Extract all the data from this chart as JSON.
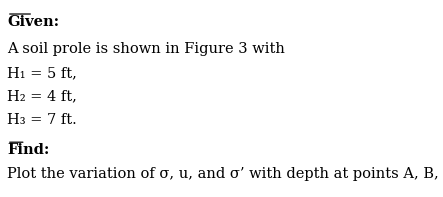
{
  "given_label": "Given:",
  "line1": "A soil prole is shown in Figure 3 with",
  "line2": "H₁ = 5 ft,",
  "line3": "H₂ = 4 ft,",
  "line4": "H₃ = 7 ft.",
  "find_label": "Find:",
  "find_text": "Plot the variation of σ, u, and σ’ with depth at points A, B, C, and D",
  "bg_color": "#ffffff",
  "text_color": "#000000",
  "font_size": 10.5,
  "label_font_size": 10.5
}
